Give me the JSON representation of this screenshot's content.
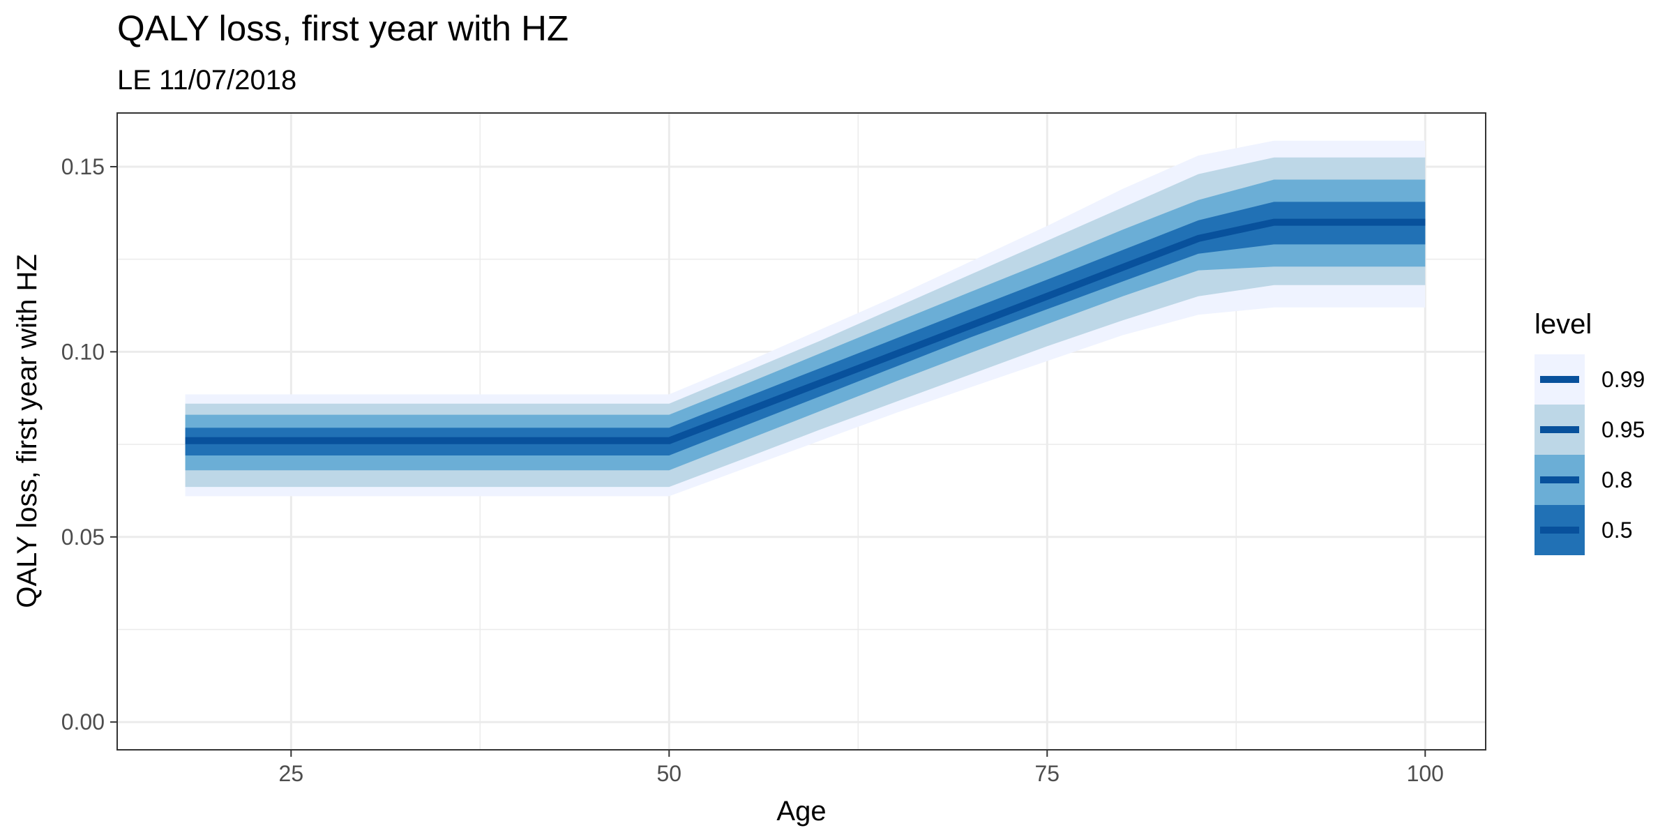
{
  "chart_data": {
    "type": "area",
    "title": "QALY loss, first year with HZ",
    "subtitle": "LE 11/07/2018",
    "xlabel": "Age",
    "ylabel": "QALY loss, first year with HZ",
    "xlim": [
      13.5,
      104
    ],
    "ylim": [
      -0.0075,
      0.1645
    ],
    "x_ticks": [
      25,
      50,
      75,
      100
    ],
    "x_tick_labels": [
      "25",
      "50",
      "75",
      "100"
    ],
    "y_ticks": [
      0,
      0.05,
      0.1,
      0.15
    ],
    "y_tick_labels": [
      "0.00",
      "0.05",
      "0.10",
      "0.15"
    ],
    "grid": true,
    "x": [
      18,
      50,
      55,
      60,
      65,
      70,
      75,
      80,
      85,
      90,
      100
    ],
    "median": [
      0.076,
      0.076,
      0.0838,
      0.0916,
      0.0994,
      0.1072,
      0.115,
      0.1228,
      0.1306,
      0.135,
      0.135
    ],
    "series": [
      {
        "level": "0.99",
        "color": "#eff3ff",
        "lower": [
          0.061,
          0.061,
          0.0685,
          0.076,
          0.0835,
          0.0905,
          0.0975,
          0.1045,
          0.11,
          0.112,
          0.112
        ],
        "upper": [
          0.0885,
          0.0885,
          0.097,
          0.106,
          0.115,
          0.1245,
          0.134,
          0.144,
          0.153,
          0.157,
          0.157
        ]
      },
      {
        "level": "0.95",
        "color": "#bdd7e7",
        "lower": [
          0.0635,
          0.0635,
          0.0712,
          0.079,
          0.0865,
          0.094,
          0.1015,
          0.1085,
          0.115,
          0.118,
          0.118
        ],
        "upper": [
          0.086,
          0.086,
          0.0945,
          0.103,
          0.112,
          0.121,
          0.13,
          0.139,
          0.148,
          0.1525,
          0.1525
        ]
      },
      {
        "level": "0.8",
        "color": "#6baed6",
        "lower": [
          0.068,
          0.068,
          0.076,
          0.084,
          0.092,
          0.0998,
          0.1075,
          0.115,
          0.122,
          0.123,
          0.123
        ],
        "upper": [
          0.083,
          0.083,
          0.0912,
          0.0996,
          0.108,
          0.1163,
          0.1245,
          0.133,
          0.141,
          0.1465,
          0.1465
        ]
      },
      {
        "level": "0.5",
        "color": "#2171b5",
        "lower": [
          0.072,
          0.072,
          0.08,
          0.088,
          0.096,
          0.104,
          0.1115,
          0.119,
          0.1265,
          0.129,
          0.129
        ],
        "upper": [
          0.0795,
          0.0795,
          0.0876,
          0.0956,
          0.1036,
          0.1116,
          0.1195,
          0.1275,
          0.1355,
          0.1405,
          0.1405
        ]
      }
    ],
    "line_color": "#08519c",
    "legend": {
      "title": "level",
      "position": "right",
      "entries": [
        "0.99",
        "0.95",
        "0.8",
        "0.5"
      ]
    }
  }
}
